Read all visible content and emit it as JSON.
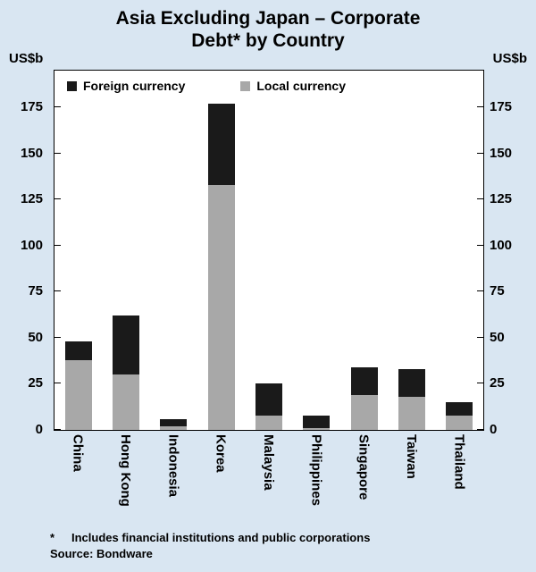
{
  "page": {
    "background": "#d9e6f2"
  },
  "title": {
    "line1": "Asia Excluding Japan – Corporate",
    "line2": "Debt* by Country"
  },
  "axis": {
    "unit_left": "US$b",
    "unit_right": "US$b"
  },
  "legend": {
    "items": [
      {
        "label": "Foreign currency",
        "color": "#1a1a1a"
      },
      {
        "label": "Local currency",
        "color": "#a8a8a8"
      }
    ]
  },
  "footnote": {
    "marker": "*",
    "text": "Includes financial institutions and public corporations",
    "source": "Source: Bondware"
  },
  "chart_data": {
    "type": "bar",
    "stacked": true,
    "title": "Asia Excluding Japan – Corporate Debt* by Country",
    "ylabel": "US$b",
    "categories": [
      "China",
      "Hong Kong",
      "Indonesia",
      "Korea",
      "Malaysia",
      "Philippines",
      "Singapore",
      "Taiwan",
      "Thailand"
    ],
    "series": [
      {
        "name": "Local currency",
        "color": "#a8a8a8",
        "values": [
          38,
          30,
          2,
          133,
          8,
          1,
          19,
          18,
          8
        ]
      },
      {
        "name": "Foreign currency",
        "color": "#1a1a1a",
        "values": [
          10,
          32,
          4,
          44,
          17,
          7,
          15,
          15,
          7
        ]
      }
    ],
    "totals": [
      48,
      62,
      6,
      177,
      25,
      8,
      34,
      33,
      15
    ],
    "yticks": [
      0,
      25,
      50,
      75,
      100,
      125,
      150,
      175
    ],
    "ylim": [
      0,
      195
    ],
    "grid": false,
    "legend_position": "top-inside",
    "bar_color_foreign": "#1a1a1a",
    "bar_color_local": "#a8a8a8"
  }
}
